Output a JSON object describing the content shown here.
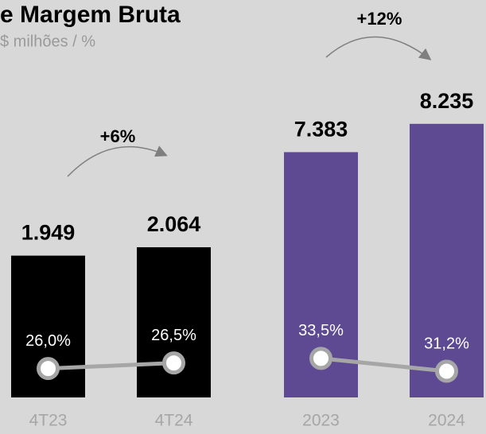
{
  "chart_data": [
    {
      "type": "bar",
      "title": "e Margem Bruta",
      "subtitle": "$ milhões / %",
      "categories": [
        "4T23",
        "4T24"
      ],
      "values": [
        1949,
        2064
      ],
      "value_labels": [
        "1.949",
        "2.064"
      ],
      "color": "#000000",
      "ylim": [
        0,
        4370
      ],
      "annotation": "+6%",
      "series": [
        {
          "values": [
            26.0,
            26.5
          ],
          "value_labels": [
            "26,0%",
            "26,5%"
          ],
          "color": "#a6a6a6",
          "axis": "y2"
        }
      ],
      "y2lim": [
        23.4,
        52
      ]
    },
    {
      "type": "bar",
      "categories": [
        "2023",
        "2024"
      ],
      "values": [
        7383,
        8235
      ],
      "value_labels": [
        "7.383",
        "8.235"
      ],
      "color": "#5e4a93",
      "ylim": [
        0,
        9570
      ],
      "annotation": "+12%",
      "series": [
        {
          "values": [
            33.5,
            31.2
          ],
          "value_labels": [
            "33,5%",
            "31,2%"
          ],
          "color": "#a6a6a6",
          "axis": "y2"
        }
      ],
      "y2lim": [
        26.5,
        83.5
      ]
    }
  ]
}
